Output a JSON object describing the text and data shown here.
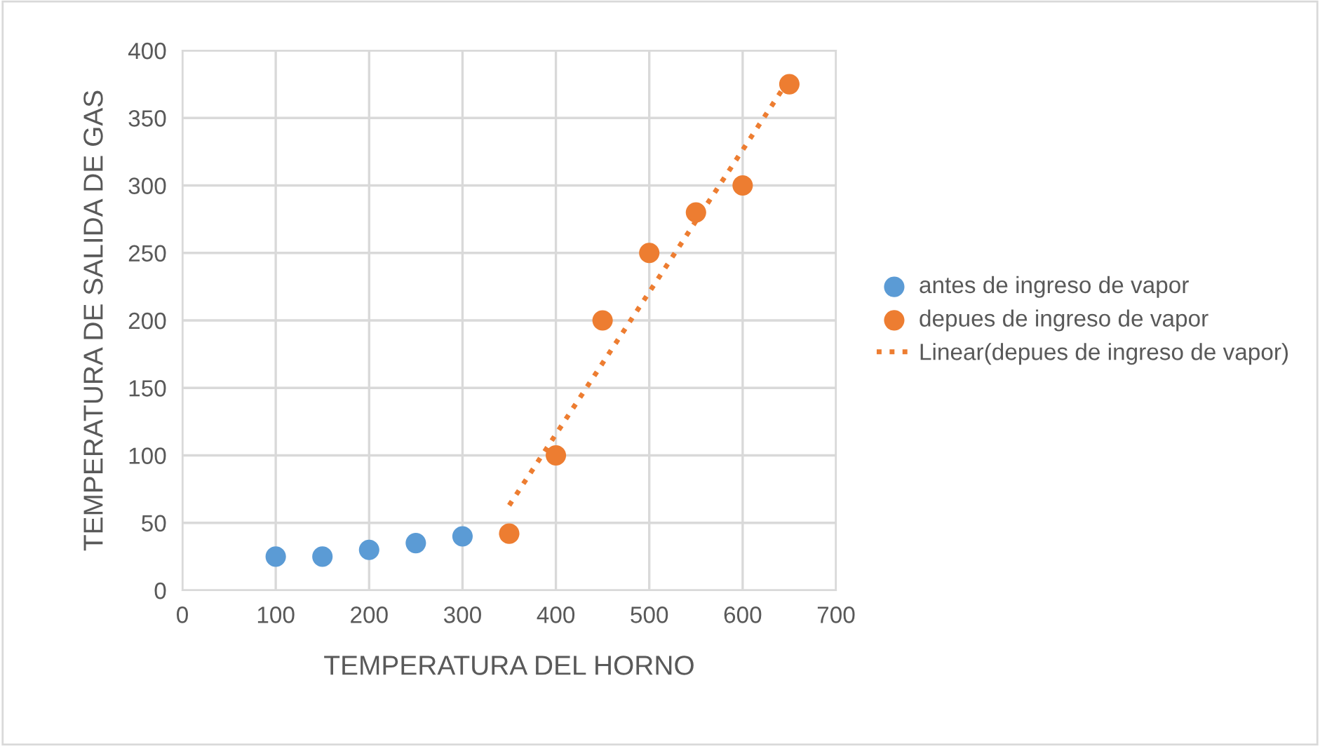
{
  "chart_data": {
    "type": "scatter",
    "xlabel": "TEMPERATURA DEL HORNO",
    "ylabel": "TEMPERATURA DE SALIDA DE GAS",
    "series": [
      {
        "name": "antes de ingreso de vapor",
        "color": "#5b9bd5",
        "x": [
          100,
          150,
          200,
          250,
          300
        ],
        "values": [
          25,
          25,
          30,
          35,
          40
        ]
      },
      {
        "name": "depues de ingreso de vapor",
        "color": "#ed7d31",
        "x": [
          350,
          400,
          450,
          500,
          550,
          600,
          650
        ],
        "values": [
          42,
          100,
          200,
          250,
          280,
          300,
          375
        ]
      },
      {
        "name": "Linear(depues de ingreso de vapor)",
        "type": "line",
        "line_style": "dotted",
        "marker": "none",
        "color": "#ed7d31",
        "x": [
          350,
          650
        ],
        "values": [
          63,
          379
        ]
      }
    ],
    "xlim": [
      0,
      700
    ],
    "xticks": [
      0,
      100,
      200,
      300,
      400,
      500,
      600,
      700
    ],
    "ylim": [
      0,
      400
    ],
    "yticks": [
      0,
      50,
      100,
      150,
      200,
      250,
      300,
      350,
      400
    ],
    "grid": true,
    "legend": "right",
    "marker": "circle"
  }
}
